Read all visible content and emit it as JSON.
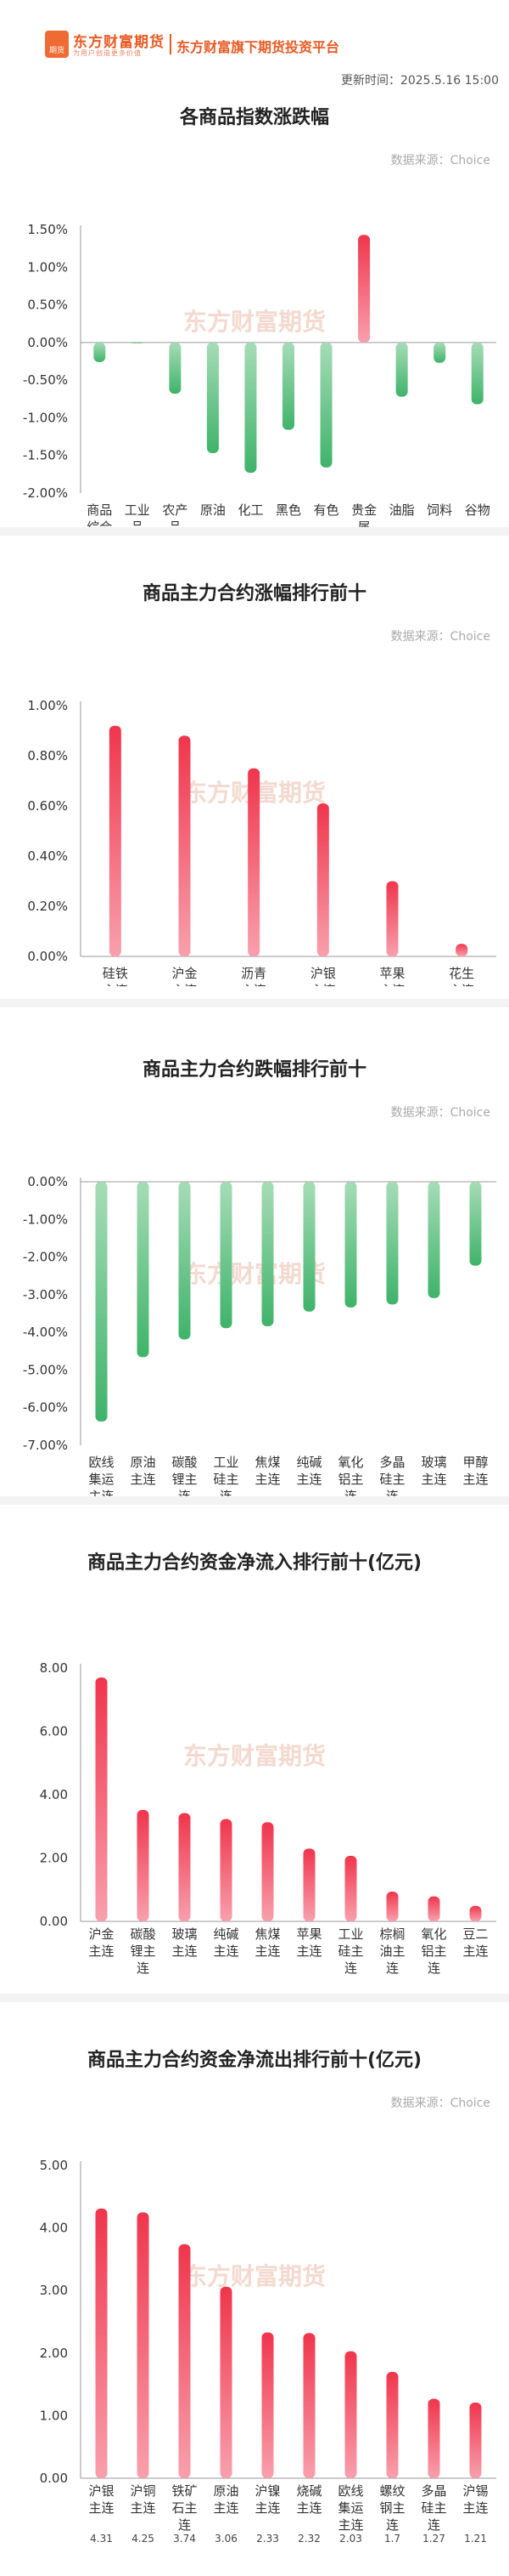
{
  "header": {
    "logo_text": "东方财富期货",
    "logo_sub": "为用户创造更多价值",
    "logo_badge": "期货",
    "brand_title": "东方财富旗下期货投资平台",
    "update_time": "更新时间：2025.5.16 15:00"
  },
  "source_label": "数据来源：Choice",
  "watermark": "东方财富期货",
  "chart_data": [
    {
      "type": "bar",
      "title": "各商品指数涨跌幅",
      "categories": [
        "商品综合",
        "工业品",
        "农产品",
        "原油",
        "化工",
        "黑色",
        "有色",
        "贵金属",
        "油脂",
        "饲料",
        "谷物"
      ],
      "values": [
        -0.26,
        -0.01,
        -0.68,
        -1.47,
        -1.73,
        -1.16,
        -1.66,
        1.43,
        -0.72,
        -0.27,
        -0.82
      ],
      "value_labels": [
        "-0.26%",
        "-0.01%",
        "-0.68%",
        "-1.47%",
        "-1.73%",
        "-1.16%",
        "-1.66%",
        "1.43%",
        "-0.72%",
        "-0.27%",
        "-0.82%"
      ],
      "y_ticks": [
        "1.50%",
        "1.00%",
        "0.50%",
        "0.00%",
        "-0.50%",
        "-1.00%",
        "-1.50%",
        "-2.00%"
      ],
      "ylim": [
        -2.0,
        1.5
      ],
      "grid": false
    },
    {
      "type": "bar",
      "title": "商品主力合约涨幅排行前十",
      "categories": [
        "硅铁主连",
        "沪金主连",
        "沥青主连",
        "沪银主连",
        "苹果主连",
        "花生主连"
      ],
      "values": [
        0.92,
        0.88,
        0.75,
        0.61,
        0.3,
        0.05
      ],
      "value_labels": [
        "0.92%",
        "0.88%",
        "0.75%",
        "0.61%",
        "0.30%",
        "0.05%"
      ],
      "y_ticks": [
        "1.00%",
        "0.80%",
        "0.60%",
        "0.40%",
        "0.20%",
        "0.00%"
      ],
      "ylim": [
        0,
        1.0
      ],
      "grid": false
    },
    {
      "type": "bar",
      "title": "商品主力合约跌幅排行前十",
      "categories": [
        "欧线集运主连",
        "原油主连",
        "碳酸锂主连",
        "工业硅主连",
        "焦煤主连",
        "纯碱主连",
        "氧化铝主连",
        "多晶硅主连",
        "玻璃主连",
        "甲醇主连"
      ],
      "values": [
        -6.37,
        -4.66,
        -4.19,
        -3.89,
        -3.84,
        -3.45,
        -3.34,
        -3.26,
        -3.09,
        -2.23
      ],
      "value_labels": [
        "-6.37%",
        "-4.66%",
        "-4.19%",
        "-3.89%",
        "-3.84%",
        "-3.45%",
        "-3.34%",
        "-3.26%",
        "-3.09%",
        "-2.23%"
      ],
      "y_ticks": [
        "0.00%",
        "-1.00%",
        "-2.00%",
        "-3.00%",
        "-4.00%",
        "-5.00%",
        "-6.00%",
        "-7.00%"
      ],
      "ylim": [
        -7.0,
        0
      ],
      "grid": false
    },
    {
      "type": "bar",
      "title": "商品主力合约资金净流入排行前十(亿元)",
      "categories": [
        "沪金主连",
        "碳酸锂主连",
        "玻璃主连",
        "纯碱主连",
        "焦煤主连",
        "苹果主连",
        "工业硅主连",
        "棕榈油主连",
        "氧化铝主连",
        "豆二主连"
      ],
      "values": [
        7.7,
        3.52,
        3.42,
        3.23,
        3.13,
        2.3,
        2.07,
        0.94,
        0.79,
        0.49
      ],
      "value_labels": [
        "7.70",
        "3.52",
        "3.42",
        "3.23",
        "3.13",
        "2.30",
        "2.07",
        "0.94",
        "0.79",
        "0.49"
      ],
      "y_ticks": [
        "8.00",
        "6.00",
        "4.00",
        "2.00",
        "0.00"
      ],
      "ylim": [
        0,
        8.0
      ],
      "grid": false
    },
    {
      "type": "bar",
      "title": "商品主力合约资金净流出排行前十(亿元)",
      "categories": [
        "沪银主连",
        "沪铜主连",
        "铁矿石主连",
        "原油主连",
        "沪镍主连",
        "烧碱主连",
        "欧线集运主连",
        "螺纹钢主连",
        "多晶硅主连",
        "沪锡主连"
      ],
      "values": [
        4.31,
        4.25,
        3.74,
        3.06,
        2.33,
        2.32,
        2.03,
        1.7,
        1.27,
        1.21
      ],
      "value_labels": [
        "4.31",
        "4.25",
        "3.74",
        "3.06",
        "2.33",
        "2.32",
        "2.03",
        "1.7",
        "1.27",
        "1.21"
      ],
      "y_ticks": [
        "5.00",
        "4.00",
        "3.00",
        "2.00",
        "1.00",
        "0.00"
      ],
      "ylim": [
        0,
        5.0
      ],
      "grid": false
    }
  ]
}
